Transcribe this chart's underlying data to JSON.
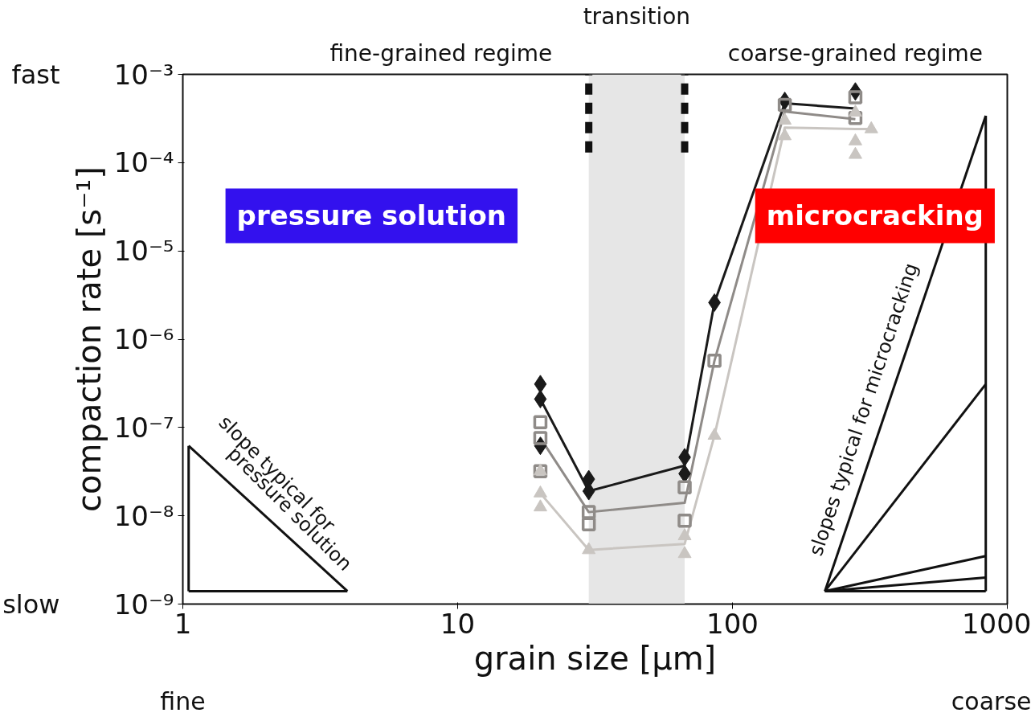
{
  "chart_data": {
    "type": "line",
    "xlabel": "grain size [µm]",
    "ylabel": "compaction rate [s⁻¹]",
    "log": "xy",
    "grid": false,
    "xlim": [
      1,
      1000
    ],
    "ylim": [
      1e-09,
      0.001
    ],
    "xticks": [
      1,
      10,
      100,
      1000
    ],
    "yticks": [
      {
        "value": 1e-09,
        "label": "10⁻⁹"
      },
      {
        "value": 1e-08,
        "label": "10⁻⁸"
      },
      {
        "value": 1e-07,
        "label": "10⁻⁷"
      },
      {
        "value": 1e-06,
        "label": "10⁻⁶"
      },
      {
        "value": 1e-05,
        "label": "10⁻⁵"
      },
      {
        "value": 0.0001,
        "label": "10⁻⁴"
      },
      {
        "value": 0.001,
        "label": "10⁻³"
      }
    ],
    "series": [
      {
        "type": "line",
        "color": "#1a1a1a",
        "marker": "none",
        "x": [
          20,
          30,
          67,
          86,
          155,
          280
        ],
        "values": [
          2.1e-07,
          1.9e-08,
          3.7e-08,
          2.6e-06,
          0.00047,
          0.00041
        ]
      },
      {
        "type": "line",
        "color": "#8f8b88",
        "marker": "none",
        "x": [
          20,
          30,
          67,
          86,
          155,
          280
        ],
        "values": [
          7.6e-08,
          1.1e-08,
          1.4e-08,
          5.7e-07,
          0.00038,
          0.00031
        ]
      },
      {
        "type": "line",
        "color": "#c9c5c1",
        "marker": "none",
        "x": [
          20,
          30,
          67,
          86,
          155,
          280,
          320
        ],
        "values": [
          1.8e-08,
          4.1e-09,
          4.8e-09,
          8.1e-08,
          0.00025,
          0.00024,
          0.00024
        ]
      },
      {
        "type": "scatter",
        "color": "#1a1a1a",
        "marker": "diamond",
        "x": [
          20,
          20,
          20,
          30,
          30,
          67,
          67,
          86,
          155,
          280
        ],
        "values": [
          3.1e-07,
          2.1e-07,
          6.2e-08,
          2.6e-08,
          1.9e-08,
          4.6e-08,
          3e-08,
          2.6e-06,
          0.0005,
          0.00064
        ]
      },
      {
        "type": "scatter",
        "color": "#8f8b88",
        "marker": "square",
        "x": [
          20,
          20,
          20,
          30,
          30,
          67,
          67,
          86,
          155,
          280,
          280
        ],
        "values": [
          1.15e-07,
          7.6e-08,
          3.2e-08,
          1.1e-08,
          8e-09,
          2.1e-08,
          8.8e-09,
          5.7e-07,
          0.00045,
          0.00055,
          0.00032
        ]
      },
      {
        "type": "scatter",
        "color": "#c9c5c1",
        "marker": "triangle",
        "x": [
          20,
          20,
          20,
          30,
          67,
          67,
          86,
          155,
          155,
          280,
          280,
          280,
          320
        ],
        "values": [
          3.2e-08,
          1.8e-08,
          1.25e-08,
          4.1e-09,
          5.9e-09,
          3.7e-09,
          8.1e-08,
          0.0003,
          0.0002,
          0.00037,
          0.000175,
          0.000123,
          0.00024
        ]
      },
      {
        "color": "#111111",
        "marker": "none",
        "x": [
          1.05,
          3.97
        ],
        "values": [
          6.2e-08,
          1.4e-09
        ]
      },
      {
        "color": "#111111",
        "marker": "none",
        "x": [
          1.05,
          3.97
        ],
        "values": [
          1.4e-09,
          1.4e-09
        ]
      },
      {
        "color": "#111111",
        "marker": "none",
        "x": [
          1.05,
          1.05
        ],
        "values": [
          1.4e-09,
          6.2e-08
        ]
      },
      {
        "color": "#111111",
        "marker": "none",
        "x": [
          217,
          835
        ],
        "values": [
          1.4e-09,
          1.4e-09
        ]
      },
      {
        "color": "#111111",
        "marker": "none",
        "x": [
          835,
          835
        ],
        "values": [
          1.4e-09,
          0.00034
        ]
      },
      {
        "color": "#111111",
        "marker": "none",
        "x": [
          217,
          835
        ],
        "values": [
          1.4e-09,
          0.00034
        ]
      },
      {
        "color": "#111111",
        "marker": "none",
        "x": [
          217,
          835
        ],
        "values": [
          1.4e-09,
          3.1e-07
        ]
      },
      {
        "color": "#111111",
        "marker": "none",
        "x": [
          217,
          835
        ],
        "values": [
          1.4e-09,
          3.5e-09
        ]
      },
      {
        "color": "#111111",
        "marker": "none",
        "x": [
          217,
          835
        ],
        "values": [
          1.4e-09,
          2e-09
        ]
      }
    ],
    "bands": [
      {
        "axis": "x",
        "from": 30,
        "to": 67,
        "label": "transition",
        "color": "#e6e6e6"
      }
    ],
    "ref_lines": [
      {
        "axis": "x",
        "value": 30,
        "color": "#111111",
        "line_style": "dashed"
      },
      {
        "axis": "x",
        "value": 67,
        "color": "#111111",
        "line_style": "dashed"
      }
    ],
    "annotations": [
      "fine-grained regime",
      "coarse-grained regime",
      "pressure solution",
      "microcracking",
      "slope typical for",
      "pressure solution",
      "slopes typical for microcracking",
      "fast",
      "slow",
      "fine",
      "coarse"
    ]
  }
}
